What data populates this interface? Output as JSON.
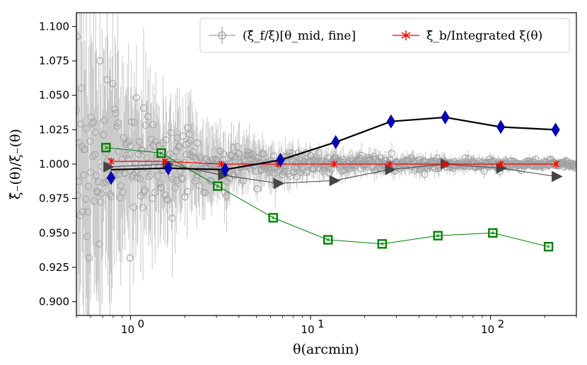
{
  "chart_data": {
    "type": "scatter",
    "title": "",
    "xlabel": "θ(arcmin)",
    "ylabel": "ξ̂₋(θ)/ξ₋(θ)",
    "xscale": "log",
    "xlim": [
      0.5,
      300
    ],
    "ylim": [
      0.89,
      1.11
    ],
    "yticks": [
      0.9,
      0.925,
      0.95,
      0.975,
      1.0,
      1.025,
      1.05,
      1.075,
      1.1
    ],
    "ytick_labels": [
      "0.900",
      "0.925",
      "0.950",
      "0.975",
      "1.000",
      "1.025",
      "1.050",
      "1.075",
      "1.100"
    ],
    "xticks": [
      1,
      10,
      100
    ],
    "xtick_base": "10",
    "xtick_exponents": [
      "0",
      "1",
      "2"
    ],
    "legend_position": "top-right",
    "legend": [
      {
        "label": "(ξ̂_f/ξ)[θ_mid, fine]",
        "color": "#a0a0a0",
        "marker": "circle-errorbar"
      },
      {
        "label": "ξ̂_b/Integrated ξ(θ)",
        "color": "#ff0000",
        "marker": "star"
      }
    ],
    "series": [
      {
        "name": "(ξ̂_f/ξ)[θ_mid, fine]",
        "color": "#a0a0a0",
        "marker": "circle-errorbar",
        "description": "dense scatter of fine-bin ratios, scatter decreasing with θ",
        "x_range": [
          0.5,
          300
        ],
        "y_center": 1.0,
        "profile": [
          {
            "x": 0.55,
            "sigma": 0.045
          },
          {
            "x": 1,
            "sigma": 0.025
          },
          {
            "x": 3,
            "sigma": 0.01
          },
          {
            "x": 10,
            "sigma": 0.004
          },
          {
            "x": 100,
            "sigma": 0.002
          },
          {
            "x": 300,
            "sigma": 0.0015
          }
        ]
      },
      {
        "name": "ξ̂_b/Integrated ξ(θ)",
        "color": "#ff0000",
        "marker": "star",
        "x": [
          0.78,
          1.55,
          3.2,
          6.6,
          13.5,
          27.5,
          56,
          114,
          232
        ],
        "values": [
          1.002,
          1.002,
          1.0,
          1.0,
          1.0,
          1.0,
          1.0,
          1.0,
          1.0
        ]
      },
      {
        "name": "black diamonds",
        "color": "#000000",
        "marker_color": "#0000cc",
        "marker": "diamond",
        "x": [
          0.78,
          1.62,
          3.35,
          6.8,
          13.8,
          28,
          56,
          114,
          230
        ],
        "values": [
          0.99,
          0.997,
          0.996,
          1.003,
          1.016,
          1.031,
          1.034,
          1.027,
          1.025
        ],
        "line_x": [
          0.78,
          1.62,
          3.35,
          6.8,
          13.8,
          28,
          56,
          114,
          230
        ],
        "line_values": [
          0.996,
          0.997,
          0.996,
          1.003,
          1.016,
          1.031,
          1.034,
          1.027,
          1.025
        ]
      },
      {
        "name": "green squares",
        "color": "#008000",
        "marker": "square",
        "x": [
          0.73,
          1.48,
          3.05,
          6.2,
          12.5,
          25,
          51,
          103,
          210
        ],
        "values": [
          1.012,
          1.008,
          0.984,
          0.961,
          0.945,
          0.942,
          0.948,
          0.95,
          0.94
        ]
      },
      {
        "name": "dark triangles",
        "color": "#444444",
        "marker": "triangle-right",
        "x": [
          0.75,
          1.6,
          3.25,
          6.6,
          13.5,
          27.5,
          56,
          114,
          232
        ],
        "values": [
          0.998,
          1.0,
          0.992,
          0.986,
          0.988,
          0.996,
          1.0,
          0.997,
          0.991
        ]
      }
    ]
  }
}
